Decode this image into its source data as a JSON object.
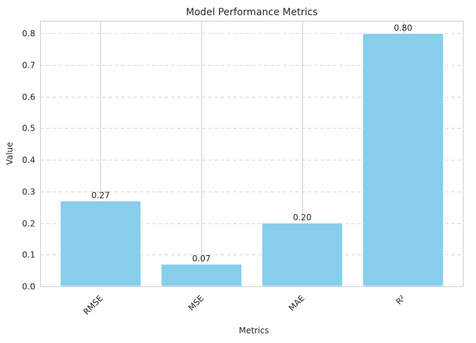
{
  "chart_data": {
    "type": "bar",
    "title": "Model Performance Metrics",
    "xlabel": "Metrics",
    "ylabel": "Value",
    "categories": [
      "RMSE",
      "MSE",
      "MAE",
      "R²"
    ],
    "values": [
      0.27,
      0.07,
      0.2,
      0.8
    ],
    "value_labels": [
      "0.27",
      "0.07",
      "0.20",
      "0.80"
    ],
    "ylim": [
      0,
      0.84
    ],
    "yticks": [
      0.0,
      0.1,
      0.2,
      0.3,
      0.4,
      0.5,
      0.6,
      0.7,
      0.8
    ],
    "ytick_labels": [
      "0.0",
      "0.1",
      "0.2",
      "0.3",
      "0.4",
      "0.5",
      "0.6",
      "0.7",
      "0.8"
    ],
    "grid": true,
    "bar_color": "#87ceeb"
  }
}
